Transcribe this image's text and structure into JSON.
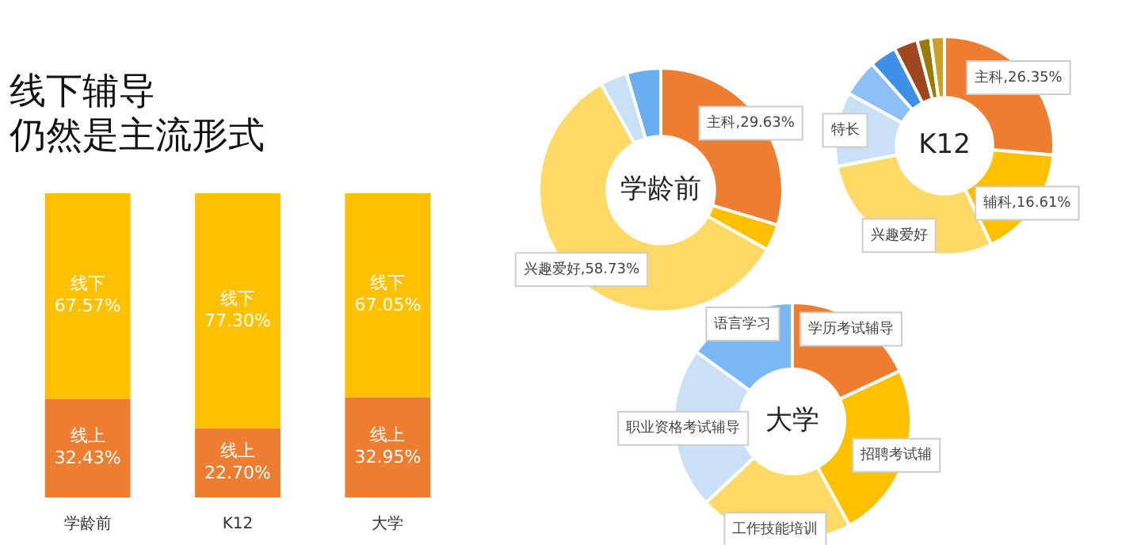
{
  "chart_data": [
    {
      "type": "bar",
      "title": "线下辅导",
      "subtitle": "仍然是主流形式",
      "categories": [
        "学龄前",
        "K12",
        "大学"
      ],
      "stacked": true,
      "tick_labels": "x",
      "ylim": [
        0,
        100
      ],
      "series": [
        {
          "name": "线上",
          "color": "#ed7d31",
          "values": [
            32.43,
            22.7,
            32.95
          ],
          "value_labels": [
            "32.43%",
            "22.70%",
            "32.95%"
          ]
        },
        {
          "name": "线下",
          "color": "#ffc000",
          "values": [
            67.57,
            77.3,
            67.05
          ],
          "value_labels": [
            "67.57%",
            "77.30%",
            "67.05%"
          ]
        }
      ]
    },
    {
      "type": "donut",
      "title": "学龄前",
      "categories": [
        "主科",
        null,
        "兴趣爱好",
        null,
        null
      ],
      "values": [
        29.63,
        3.5,
        58.73,
        3.6,
        4.54
      ],
      "value_labels": [
        "29.63%",
        null,
        "58.73%",
        null,
        null
      ],
      "colors": [
        "#ed7d31",
        "#ffc000",
        "#ffd966",
        "#c9e0f7",
        "#6aaef0"
      ]
    },
    {
      "type": "donut",
      "title": "K12",
      "categories": [
        "主科",
        "辅科",
        "兴趣爱好",
        "特长",
        null,
        null,
        null,
        null,
        null
      ],
      "values": [
        26.35,
        16.61,
        29,
        11,
        5.5,
        4,
        3.5,
        2,
        2.04
      ],
      "value_labels": [
        "26.35%",
        "16.61%",
        null,
        null,
        null,
        null,
        null,
        null,
        null
      ],
      "colors": [
        "#ed7d31",
        "#ffc000",
        "#ffd966",
        "#c9e0f7",
        "#8fc0f5",
        "#3d8fe8",
        "#a0461e",
        "#9a7a0a",
        "#c9a227"
      ]
    },
    {
      "type": "donut",
      "title": "大学",
      "categories": [
        "学历考试辅导",
        "招聘考试辅",
        "工作技能培训",
        "职业资格考试辅导",
        "语言学习"
      ],
      "values": [
        18,
        24,
        21,
        22,
        15
      ],
      "colors": [
        "#ed7d31",
        "#ffc000",
        "#ffd966",
        "#c9e0f7",
        "#7ab8f5"
      ]
    }
  ]
}
